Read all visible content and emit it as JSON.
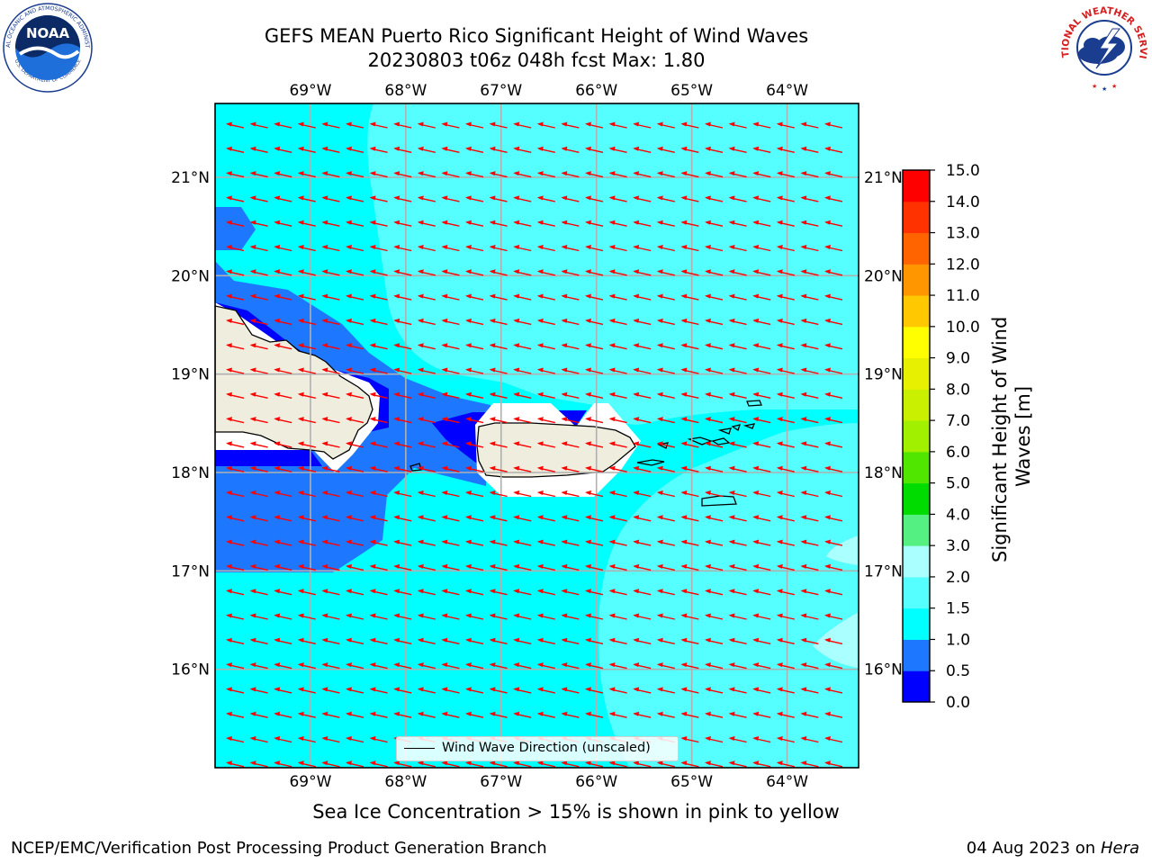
{
  "header": {
    "title_line1": "GEFS MEAN Puerto Rico Significant Height of Wind Waves",
    "title_line2": "20230803 t06z 048h fcst   Max: 1.80"
  },
  "logos": {
    "left": "noaa-logo",
    "left_text": "NOAA",
    "left_ring_text": "NATIONAL OCEANIC AND ATMOSPHERIC ADMINISTRATION",
    "left_ring_text_bottom": "U.S. DEPARTMENT OF COMMERCE",
    "right": "national-weather-service-logo",
    "right_ring_text": "NATIONAL WEATHER SERVICE"
  },
  "map": {
    "lon_ticks": [
      "69°W",
      "68°W",
      "67°W",
      "66°W",
      "65°W",
      "64°W"
    ],
    "lat_ticks": [
      "21°N",
      "20°N",
      "19°N",
      "18°N",
      "17°N",
      "16°N"
    ],
    "lon_range": [
      -70.0,
      -63.25
    ],
    "lat_range": [
      15.0,
      21.75
    ],
    "legend_label": "Wind Wave Direction (unscaled)",
    "arrow_color": "#ff0000",
    "arrow_direction": "toward west-southwest"
  },
  "colorbar": {
    "label": "Significant Height of Wind Waves [m]",
    "label_line1": "Significant Height of Wind",
    "label_line2": "Waves [m]",
    "tick_labels": [
      "0.0",
      "0.5",
      "1.0",
      "1.5",
      "2.0",
      "3.0",
      "4.0",
      "5.0",
      "6.0",
      "7.0",
      "8.0",
      "9.0",
      "10.0",
      "11.0",
      "12.0",
      "13.0",
      "14.0",
      "15.0"
    ],
    "colors": [
      "#0000ff",
      "#1e78ff",
      "#00ffff",
      "#55ffff",
      "#aaffff",
      "#55f082",
      "#00dc00",
      "#50e600",
      "#a0f000",
      "#c8f000",
      "#e6f000",
      "#ffff00",
      "#ffc800",
      "#ff9600",
      "#ff6400",
      "#ff3200",
      "#ff0000"
    ],
    "levels": [
      0.0,
      0.5,
      1.0,
      1.5,
      2.0,
      3.0,
      4.0,
      5.0,
      6.0,
      7.0,
      8.0,
      9.0,
      10.0,
      11.0,
      12.0,
      13.0,
      14.0,
      15.0
    ]
  },
  "notes": {
    "ice": "Sea Ice Concentration > 15% is shown in pink to yellow",
    "footer_left": "NCEP/EMC/Verification Post Processing Product Generation Branch",
    "footer_right_prefix": "04 Aug 2023 on",
    "footer_right_host": "Hera"
  }
}
